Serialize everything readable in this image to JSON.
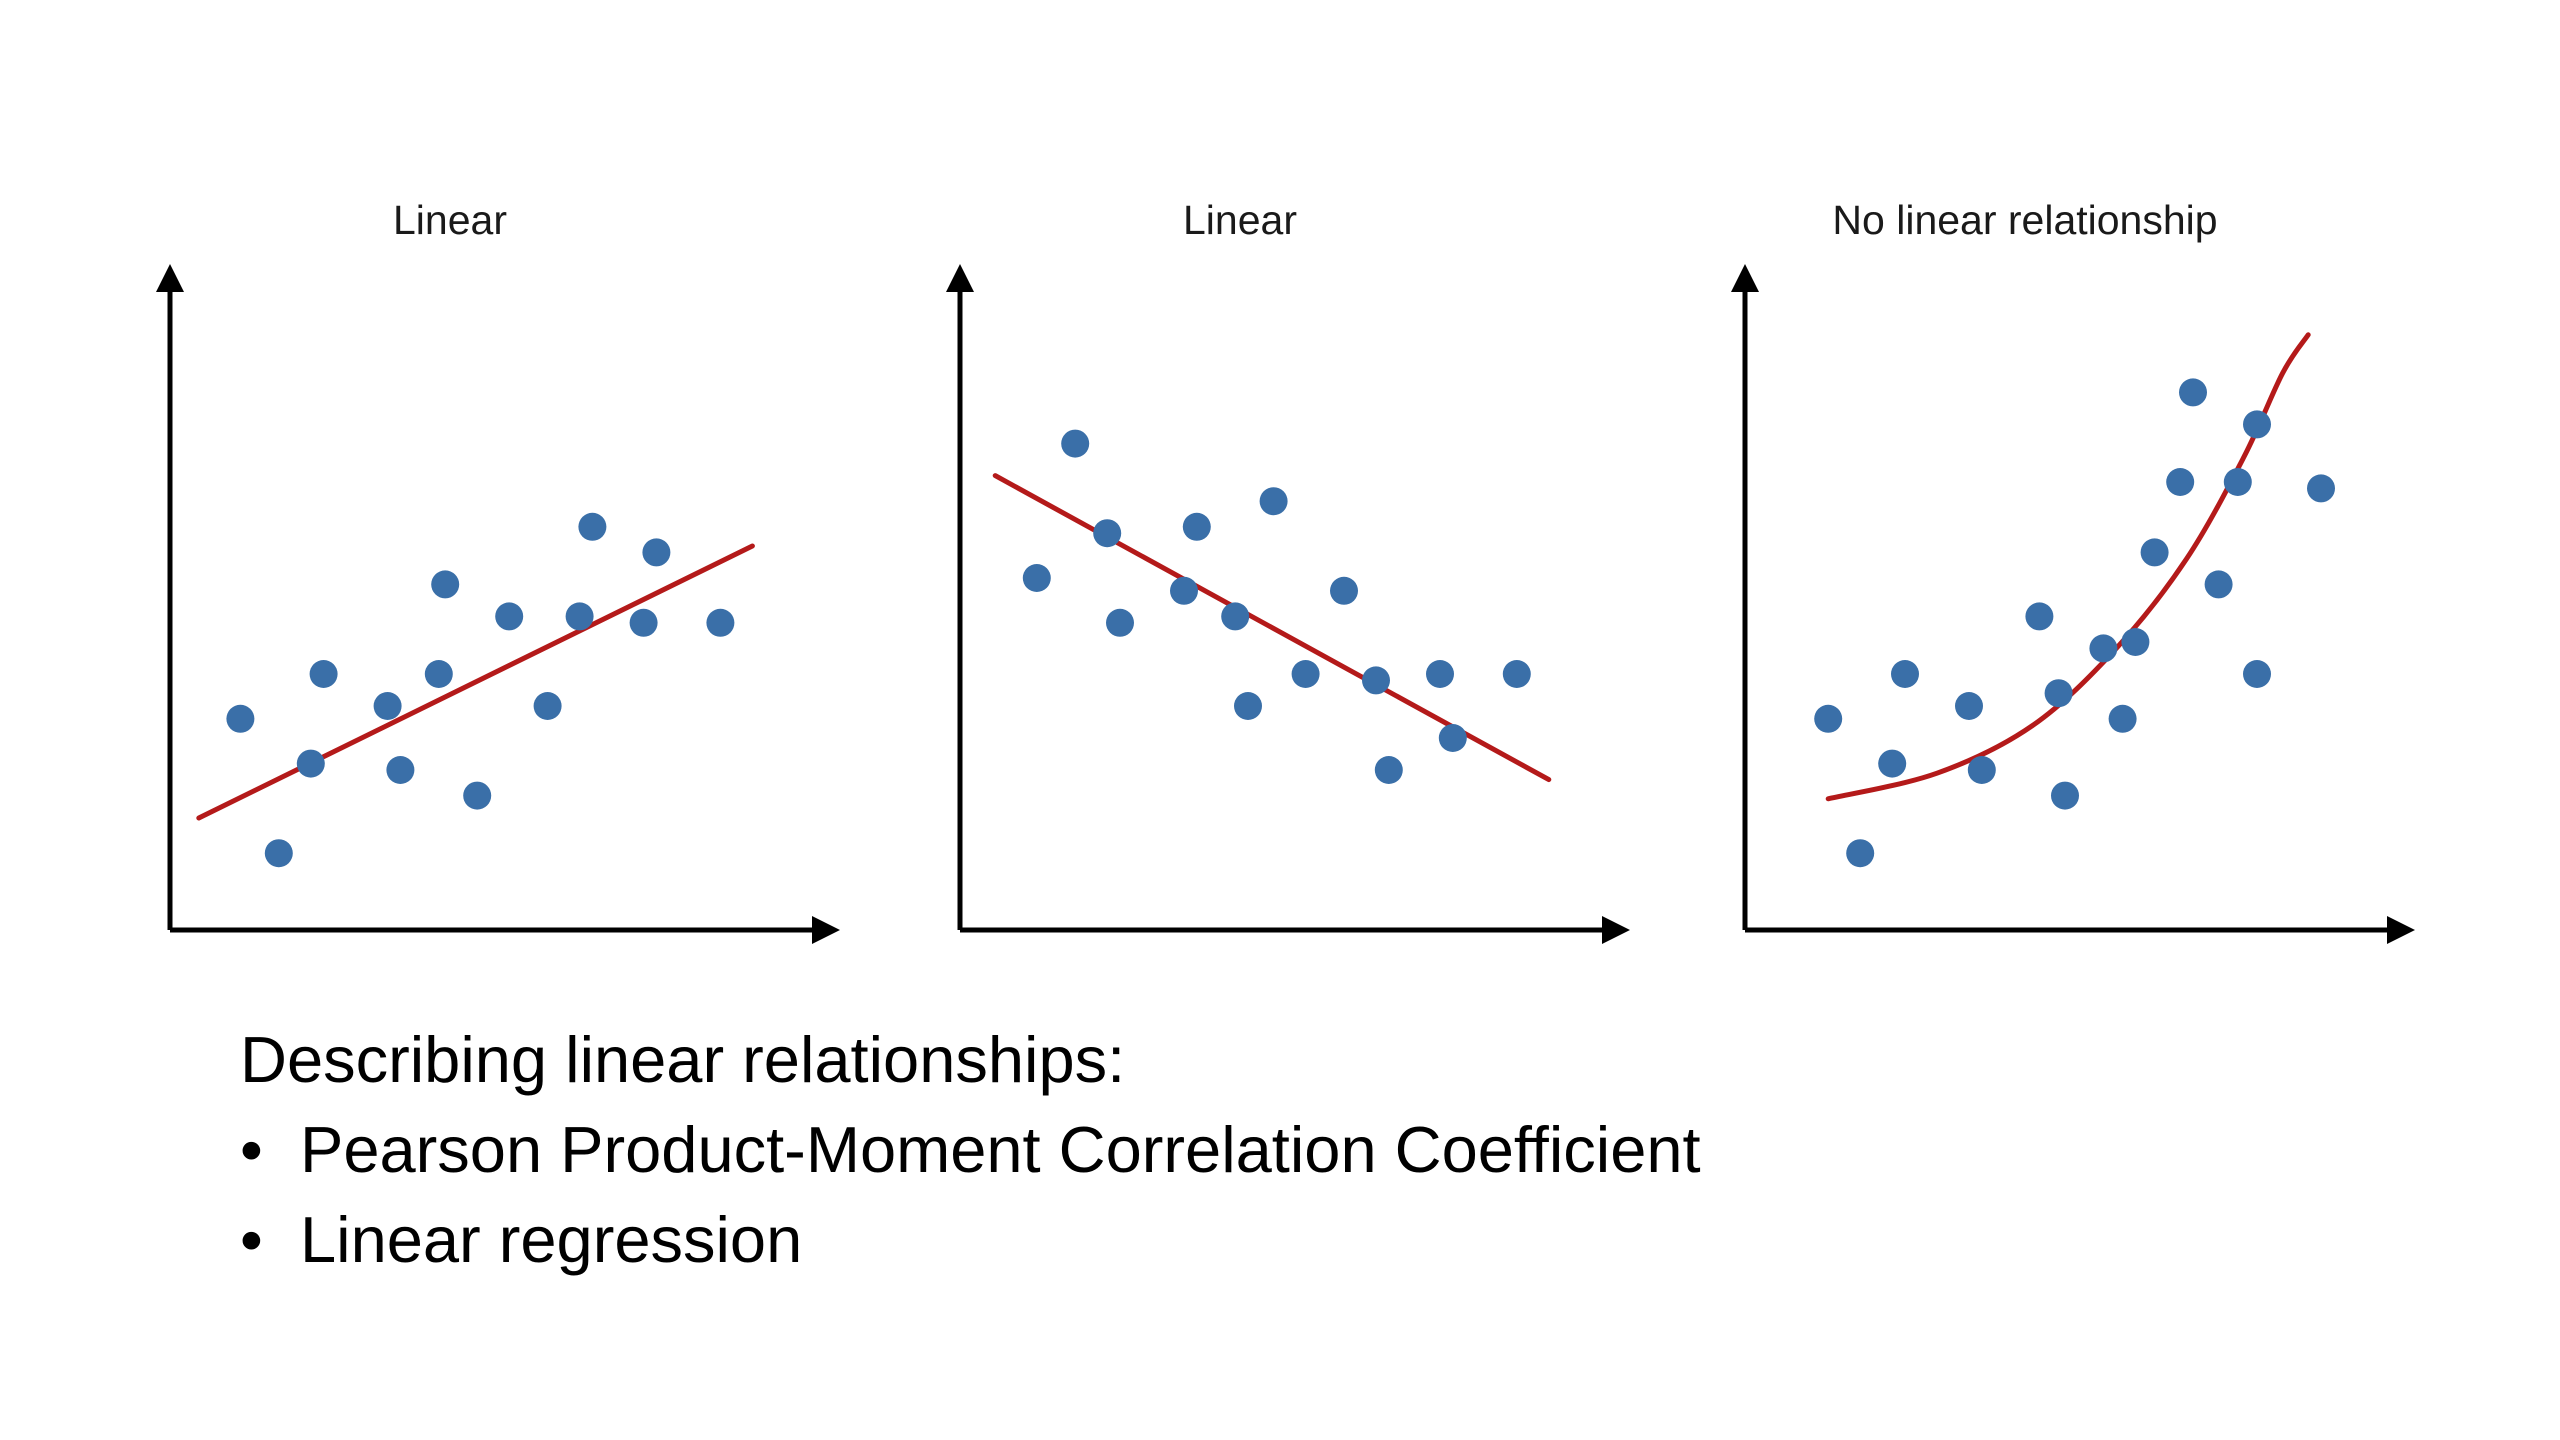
{
  "slide": {
    "caption_heading": "Describing linear relationships:",
    "bullets": [
      "Pearson Product-Moment Correlation Coefficient",
      "Linear regression"
    ],
    "bullet_glyph": "•"
  },
  "colors": {
    "point": "#3a6fa8",
    "fit_line": "#b41a1a",
    "axis": "#000000"
  },
  "chart_data": [
    {
      "type": "scatter",
      "title": "Linear",
      "xlabel": "",
      "ylabel": "",
      "xlim": [
        0,
        10
      ],
      "ylim": [
        0,
        10
      ],
      "grid": false,
      "axes_style": "arrows",
      "points": [
        {
          "x": 1.1,
          "y": 3.3
        },
        {
          "x": 1.7,
          "y": 1.2
        },
        {
          "x": 2.2,
          "y": 2.6
        },
        {
          "x": 2.4,
          "y": 4.0
        },
        {
          "x": 3.4,
          "y": 3.5
        },
        {
          "x": 3.6,
          "y": 2.5
        },
        {
          "x": 4.2,
          "y": 4.0
        },
        {
          "x": 4.3,
          "y": 5.4
        },
        {
          "x": 4.8,
          "y": 2.1
        },
        {
          "x": 5.3,
          "y": 4.9
        },
        {
          "x": 5.9,
          "y": 3.5
        },
        {
          "x": 6.4,
          "y": 4.9
        },
        {
          "x": 6.6,
          "y": 6.3
        },
        {
          "x": 7.4,
          "y": 4.8
        },
        {
          "x": 7.6,
          "y": 5.9
        },
        {
          "x": 8.6,
          "y": 4.8
        }
      ],
      "fit": {
        "type": "linear",
        "x_start": 0.45,
        "y_start": 1.75,
        "x_end": 9.1,
        "y_end": 6.0
      }
    },
    {
      "type": "scatter",
      "title": "Linear",
      "xlabel": "",
      "ylabel": "",
      "xlim": [
        0,
        10
      ],
      "ylim": [
        0,
        10
      ],
      "grid": false,
      "axes_style": "arrows",
      "points": [
        {
          "x": 1.2,
          "y": 5.5
        },
        {
          "x": 1.8,
          "y": 7.6
        },
        {
          "x": 2.3,
          "y": 6.2
        },
        {
          "x": 2.5,
          "y": 4.8
        },
        {
          "x": 3.5,
          "y": 5.3
        },
        {
          "x": 3.7,
          "y": 6.3
        },
        {
          "x": 4.3,
          "y": 4.9
        },
        {
          "x": 4.5,
          "y": 3.5
        },
        {
          "x": 4.9,
          "y": 6.7
        },
        {
          "x": 5.4,
          "y": 4.0
        },
        {
          "x": 6.0,
          "y": 5.3
        },
        {
          "x": 6.5,
          "y": 3.9
        },
        {
          "x": 6.7,
          "y": 2.5
        },
        {
          "x": 7.5,
          "y": 4.0
        },
        {
          "x": 7.7,
          "y": 3.0
        },
        {
          "x": 8.7,
          "y": 4.0
        }
      ],
      "fit": {
        "type": "linear",
        "x_start": 0.55,
        "y_start": 7.1,
        "x_end": 9.2,
        "y_end": 2.35
      }
    },
    {
      "type": "scatter",
      "title": "No linear relationship",
      "xlabel": "",
      "ylabel": "",
      "xlim": [
        0,
        10
      ],
      "ylim": [
        0,
        10
      ],
      "grid": false,
      "axes_style": "arrows",
      "points": [
        {
          "x": 1.3,
          "y": 3.3
        },
        {
          "x": 1.8,
          "y": 1.2
        },
        {
          "x": 2.3,
          "y": 2.6
        },
        {
          "x": 2.5,
          "y": 4.0
        },
        {
          "x": 3.5,
          "y": 3.5
        },
        {
          "x": 3.7,
          "y": 2.5
        },
        {
          "x": 4.6,
          "y": 4.9
        },
        {
          "x": 4.9,
          "y": 3.7
        },
        {
          "x": 5.0,
          "y": 2.1
        },
        {
          "x": 5.6,
          "y": 4.4
        },
        {
          "x": 5.9,
          "y": 3.3
        },
        {
          "x": 6.1,
          "y": 4.5
        },
        {
          "x": 6.4,
          "y": 5.9
        },
        {
          "x": 6.8,
          "y": 7.0
        },
        {
          "x": 7.0,
          "y": 8.4
        },
        {
          "x": 7.4,
          "y": 5.4
        },
        {
          "x": 7.7,
          "y": 7.0
        },
        {
          "x": 8.0,
          "y": 7.9
        },
        {
          "x": 8.0,
          "y": 4.0
        },
        {
          "x": 9.0,
          "y": 6.9
        }
      ],
      "fit": {
        "type": "exponential",
        "curve": [
          [
            1.3,
            2.05
          ],
          [
            3.0,
            2.45
          ],
          [
            4.5,
            3.2
          ],
          [
            5.8,
            4.4
          ],
          [
            6.9,
            5.8
          ],
          [
            7.8,
            7.4
          ],
          [
            8.4,
            8.7
          ],
          [
            8.8,
            9.3
          ]
        ]
      }
    }
  ]
}
